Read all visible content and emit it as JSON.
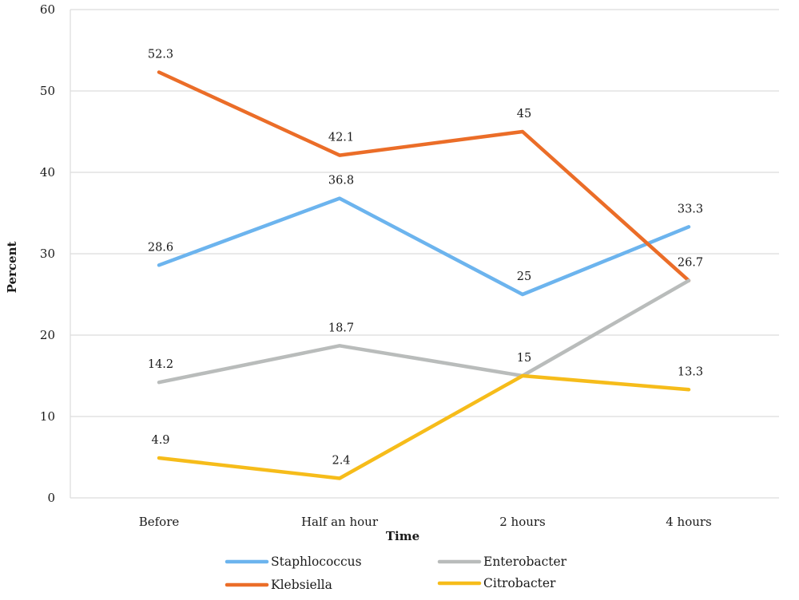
{
  "chart_data": {
    "type": "line",
    "title": "",
    "xlabel": "Time",
    "ylabel": "Percent",
    "categories": [
      "Before",
      "Half an hour",
      "2 hours",
      "4 hours"
    ],
    "ylim": [
      0,
      60
    ],
    "yticks": [
      0,
      10,
      20,
      30,
      40,
      50,
      60
    ],
    "grid": true,
    "legend_position": "bottom",
    "series": [
      {
        "name": "Staphlococcus",
        "color": "#6cb4ee",
        "values": [
          28.6,
          36.8,
          25,
          33.3
        ],
        "labels": [
          "28.6",
          "36.8",
          "25",
          "33.3"
        ]
      },
      {
        "name": "Klebsiella",
        "color": "#eb6d28",
        "values": [
          52.3,
          42.1,
          45,
          26.7
        ],
        "labels": [
          "52.3",
          "42.1",
          "45",
          ""
        ]
      },
      {
        "name": "Enterobacter",
        "color": "#b9bcbb",
        "values": [
          14.2,
          18.7,
          15,
          26.7
        ],
        "labels": [
          "14.2",
          "18.7",
          "",
          "26.7"
        ]
      },
      {
        "name": "Citrobacter",
        "color": "#f6bc1a",
        "values": [
          4.9,
          2.4,
          15,
          13.3
        ],
        "labels": [
          "4.9",
          "2.4",
          "15",
          "13.3"
        ]
      }
    ]
  }
}
